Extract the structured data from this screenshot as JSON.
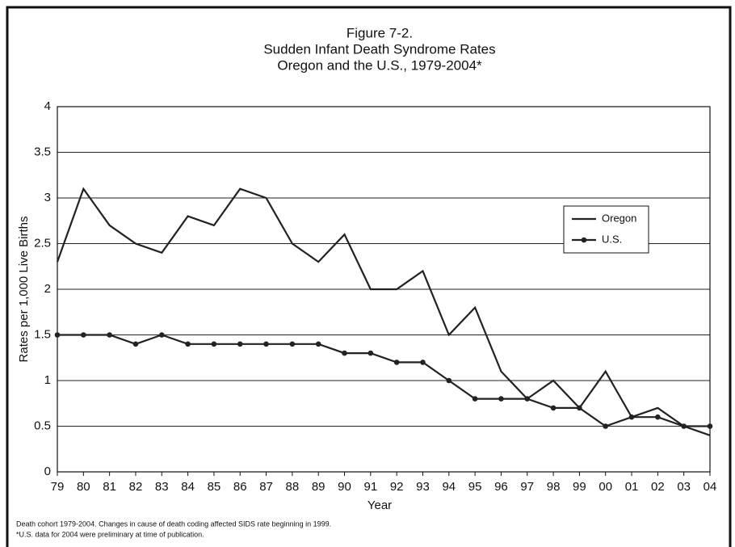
{
  "chart_data": {
    "type": "line",
    "title": [
      "Figure 7-2.",
      "Sudden Infant Death Syndrome Rates",
      "Oregon and the U.S., 1979-2004*"
    ],
    "x_label": "Year",
    "y_label": "Rates per 1,000 Live Births",
    "categories": [
      "79",
      "80",
      "81",
      "82",
      "83",
      "84",
      "85",
      "86",
      "87",
      "88",
      "89",
      "90",
      "91",
      "92",
      "93",
      "94",
      "95",
      "96",
      "97",
      "98",
      "99",
      "00",
      "01",
      "02",
      "03",
      "04"
    ],
    "series": [
      {
        "name": "Oregon",
        "color": "#222222",
        "marker": false,
        "values": [
          2.3,
          3.1,
          2.7,
          2.5,
          2.4,
          2.8,
          2.7,
          3.1,
          3.0,
          2.5,
          2.3,
          2.6,
          2.0,
          2.0,
          2.2,
          1.5,
          1.8,
          1.1,
          0.8,
          1.0,
          0.7,
          1.1,
          0.6,
          0.7,
          0.5,
          0.4
        ]
      },
      {
        "name": "U.S.",
        "color": "#222222",
        "marker": true,
        "values": [
          1.5,
          1.5,
          1.5,
          1.4,
          1.5,
          1.4,
          1.4,
          1.4,
          1.4,
          1.4,
          1.4,
          1.3,
          1.3,
          1.2,
          1.2,
          1.0,
          0.8,
          0.8,
          0.8,
          0.7,
          0.7,
          0.5,
          0.6,
          0.6,
          0.5,
          0.5
        ]
      }
    ],
    "ylim": [
      0,
      4
    ],
    "yticks": [
      0,
      0.5,
      1,
      1.5,
      2,
      2.5,
      3,
      3.5,
      4
    ],
    "grid": true,
    "legend": "right",
    "notes": [
      "Death cohort 1979-2004.  Changes in cause of death coding affected SIDS rate beginning in 1999.",
      "*U.S. data for 2004 were preliminary at time of publication."
    ]
  }
}
